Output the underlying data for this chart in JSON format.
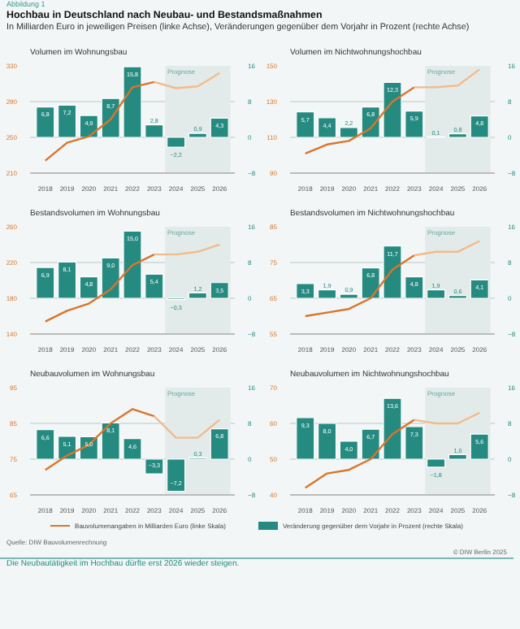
{
  "chart_data": [
    {
      "type": "bar",
      "title": "Volumen im Wohnungsbau",
      "annotations": [
        "Abbildung 1",
        "Hochbau in Deutschland nach Neubau- und Bestandsmaßnahmen",
        "In Milliarden Euro in jeweiligen Preisen (linke Achse), Veränderungen gegenüber dem Vorjahr in Prozent (rechte Achse)"
      ],
      "categories": [
        "2018",
        "2019",
        "2020",
        "2021",
        "2022",
        "2023",
        "2024",
        "2025",
        "2026"
      ],
      "ylim": [
        210,
        330
      ],
      "yticks": [
        210,
        250,
        290,
        330
      ],
      "y2lim": [
        -8,
        16
      ],
      "y2ticks": [
        -8,
        0,
        8,
        16
      ],
      "grid": "y",
      "bands": [
        {
          "axis": "x",
          "from": "2024",
          "to": "2026",
          "label": "Prognose",
          "color": "#e2ebe9"
        }
      ],
      "series": [
        {
          "axis": "y2",
          "color": "#258a80",
          "values": [
            6.8,
            7.2,
            4.9,
            8.7,
            15.8,
            2.8,
            -2.2,
            0.9,
            4.3
          ],
          "value_labels": [
            "6,8",
            "7,2",
            "4,9",
            "8,7",
            "15,8",
            "2,8",
            "−2,2",
            "0,9",
            "4,3"
          ]
        },
        {
          "type": "line",
          "color": "#d9752b",
          "values": [
            224,
            244,
            251,
            270,
            306,
            312,
            null,
            null,
            null
          ]
        },
        {
          "type": "line",
          "color": "#f2bb8c",
          "values": [
            null,
            null,
            null,
            null,
            null,
            312,
            305,
            307,
            322
          ]
        }
      ]
    },
    {
      "type": "bar",
      "title": "Volumen im Nichtwohnungshochbau",
      "categories": [
        "2018",
        "2019",
        "2020",
        "2021",
        "2022",
        "2023",
        "2024",
        "2025",
        "2026"
      ],
      "ylim": [
        90,
        150
      ],
      "yticks": [
        90,
        110,
        130,
        150
      ],
      "y2lim": [
        -8,
        16
      ],
      "y2ticks": [
        -8,
        0,
        8,
        16
      ],
      "grid": "y",
      "bands": [
        {
          "axis": "x",
          "from": "2024",
          "to": "2026",
          "label": "Prognose",
          "color": "#e2ebe9"
        }
      ],
      "series": [
        {
          "axis": "y2",
          "color": "#258a80",
          "values": [
            5.7,
            4.4,
            2.2,
            6.8,
            12.3,
            5.9,
            0.1,
            0.8,
            4.8
          ],
          "value_labels": [
            "5,7",
            "4,4",
            "2,2",
            "6,8",
            "12,3",
            "5,9",
            "0,1",
            "0,8",
            "4,8"
          ]
        },
        {
          "type": "line",
          "color": "#d9752b",
          "values": [
            101,
            106,
            108,
            115,
            130,
            138,
            null,
            null,
            null
          ]
        },
        {
          "type": "line",
          "color": "#f2bb8c",
          "values": [
            null,
            null,
            null,
            null,
            null,
            138,
            138,
            139,
            148
          ]
        }
      ]
    },
    {
      "type": "bar",
      "title": "Bestandsvolumen im Wohnungsbau",
      "categories": [
        "2018",
        "2019",
        "2020",
        "2021",
        "2022",
        "2023",
        "2024",
        "2025",
        "2026"
      ],
      "ylim": [
        140,
        260
      ],
      "yticks": [
        140,
        180,
        220,
        260
      ],
      "y2lim": [
        -8,
        16
      ],
      "y2ticks": [
        -8,
        0,
        8,
        16
      ],
      "grid": "y",
      "bands": [
        {
          "axis": "x",
          "from": "2024",
          "to": "2026",
          "label": "Prognose",
          "color": "#e2ebe9"
        }
      ],
      "series": [
        {
          "axis": "y2",
          "color": "#258a80",
          "values": [
            6.9,
            8.1,
            4.8,
            9.0,
            15.0,
            5.4,
            -0.3,
            1.2,
            3.5
          ],
          "value_labels": [
            "6,9",
            "8,1",
            "4,8",
            "9,0",
            "15,0",
            "5,4",
            "−0,3",
            "1,2",
            "3,5"
          ]
        },
        {
          "type": "line",
          "color": "#d9752b",
          "values": [
            154,
            166,
            174,
            190,
            217,
            229,
            null,
            null,
            null
          ]
        },
        {
          "type": "line",
          "color": "#f2bb8c",
          "values": [
            null,
            null,
            null,
            null,
            null,
            229,
            229,
            232,
            240
          ]
        }
      ]
    },
    {
      "type": "bar",
      "title": "Bestandsvolumen im Nichtwohnungshochbau",
      "categories": [
        "2018",
        "2019",
        "2020",
        "2021",
        "2022",
        "2023",
        "2024",
        "2025",
        "2026"
      ],
      "ylim": [
        55,
        85
      ],
      "yticks": [
        55,
        65,
        75,
        85
      ],
      "y2lim": [
        -8,
        16
      ],
      "y2ticks": [
        -8,
        0,
        8,
        16
      ],
      "grid": "y",
      "bands": [
        {
          "axis": "x",
          "from": "2024",
          "to": "2026",
          "label": "Prognose",
          "color": "#e2ebe9"
        }
      ],
      "series": [
        {
          "axis": "y2",
          "color": "#258a80",
          "values": [
            3.3,
            1.9,
            0.9,
            6.8,
            11.7,
            4.8,
            1.9,
            0.6,
            4.1
          ],
          "value_labels": [
            "3,3",
            "1,9",
            "0,9",
            "6,8",
            "11,7",
            "4,8",
            "1,9",
            "0,6",
            "4,1"
          ]
        },
        {
          "type": "line",
          "color": "#d9752b",
          "values": [
            60,
            61,
            62,
            65,
            73,
            77,
            null,
            null,
            null
          ]
        },
        {
          "type": "line",
          "color": "#f2bb8c",
          "values": [
            null,
            null,
            null,
            null,
            null,
            77,
            78,
            78,
            81
          ]
        }
      ]
    },
    {
      "type": "bar",
      "title": "Neubauvolumen im Wohnungsbau",
      "categories": [
        "2018",
        "2019",
        "2020",
        "2021",
        "2022",
        "2023",
        "2024",
        "2025",
        "2026"
      ],
      "ylim": [
        65,
        95
      ],
      "yticks": [
        65,
        75,
        85,
        95
      ],
      "y2lim": [
        -8,
        16
      ],
      "y2ticks": [
        -8,
        0,
        8,
        16
      ],
      "grid": "y",
      "bands": [
        {
          "axis": "x",
          "from": "2024",
          "to": "2026",
          "label": "Prognose",
          "color": "#e2ebe9"
        }
      ],
      "series": [
        {
          "axis": "y2",
          "color": "#258a80",
          "values": [
            6.6,
            5.1,
            5.0,
            8.1,
            4.6,
            -3.3,
            -7.2,
            0.3,
            6.8
          ],
          "value_labels": [
            "6,6",
            "5,1",
            "5,0",
            "8,1",
            "4,6",
            "−3,3",
            "−7,2",
            "0,3",
            "6,8"
          ]
        },
        {
          "type": "line",
          "color": "#d9752b",
          "values": [
            72,
            76,
            79,
            85,
            89,
            87,
            null,
            null,
            null
          ]
        },
        {
          "type": "line",
          "color": "#f2bb8c",
          "values": [
            null,
            null,
            null,
            null,
            null,
            87,
            81,
            81,
            86
          ]
        }
      ]
    },
    {
      "type": "bar",
      "title": "Neubauvolumen im Nichtwohnungshochbau",
      "legend": "bottom",
      "annotations": [
        "Quelle: DIW Bauvolumenrechnung",
        "© DIW Berlin 2025",
        "Die Neubautätigkeit im Hochbau dürfte erst 2026 wieder steigen."
      ],
      "categories": [
        "2018",
        "2019",
        "2020",
        "2021",
        "2022",
        "2023",
        "2024",
        "2025",
        "2026"
      ],
      "ylim": [
        40,
        70
      ],
      "yticks": [
        40,
        50,
        60,
        70
      ],
      "y2lim": [
        -8,
        16
      ],
      "y2ticks": [
        -8,
        0,
        8,
        16
      ],
      "grid": "y",
      "bands": [
        {
          "axis": "x",
          "from": "2024",
          "to": "2026",
          "label": "Prognose",
          "color": "#e2ebe9"
        }
      ],
      "series": [
        {
          "axis": "y2",
          "name": "Veränderung gegenüber dem Vorjahr in Prozent (rechte Skala)",
          "color": "#258a80",
          "values": [
            9.3,
            8.0,
            4.0,
            6.7,
            13.6,
            7.3,
            -1.8,
            1.0,
            5.6
          ],
          "value_labels": [
            "9,3",
            "8,0",
            "4,0",
            "6,7",
            "13,6",
            "7,3",
            "−1,8",
            "1,0",
            "5,6"
          ]
        },
        {
          "type": "line",
          "name": "Bauvolumenangaben in Milliarden Euro (linke Skala)",
          "color": "#d9752b",
          "values": [
            42,
            46,
            47,
            50,
            57,
            61,
            null,
            null,
            null
          ]
        },
        {
          "type": "line",
          "color": "#f2bb8c",
          "values": [
            null,
            null,
            null,
            null,
            null,
            61,
            60,
            60,
            63
          ]
        }
      ]
    }
  ]
}
